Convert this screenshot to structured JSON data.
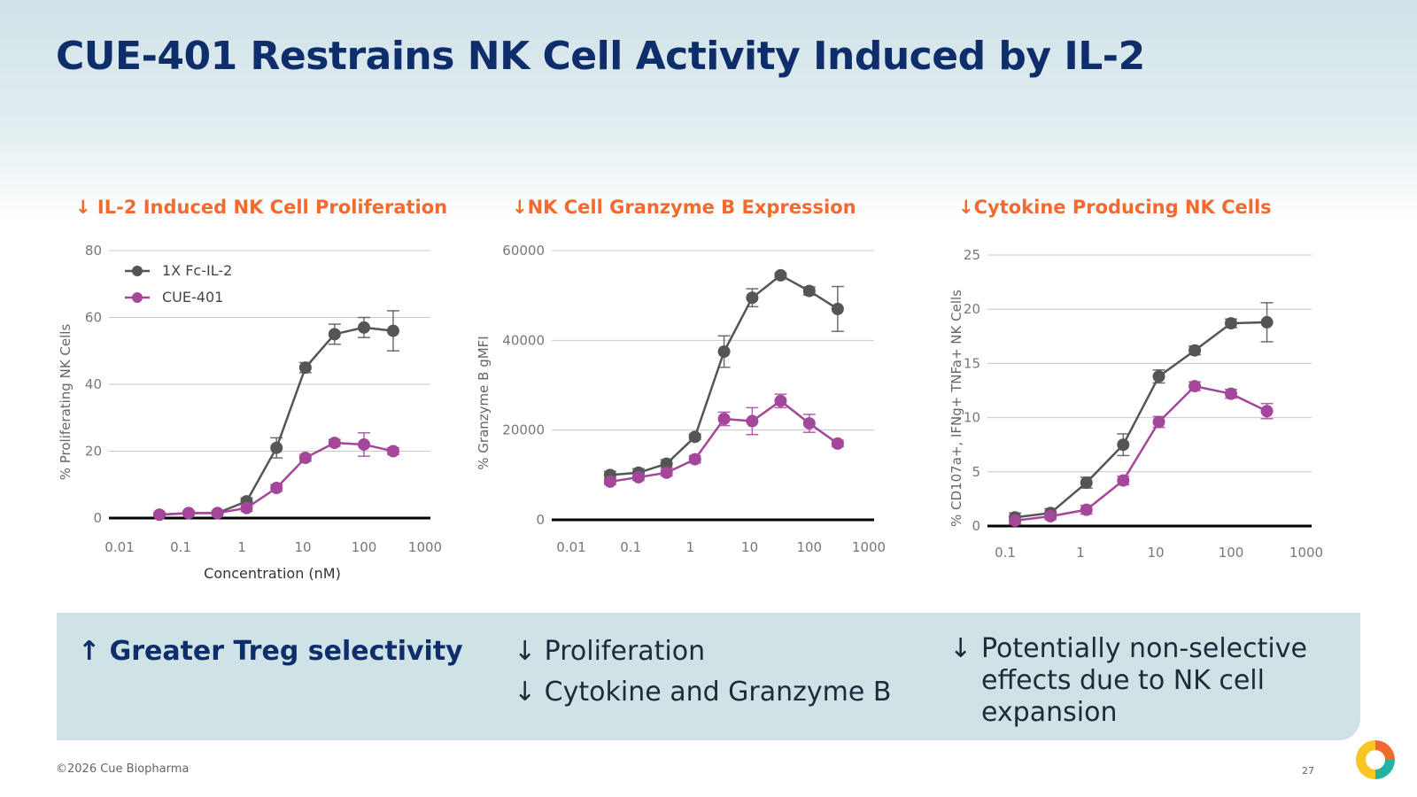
{
  "title": "CUE-401 Restrains NK Cell Activity Induced by IL-2",
  "headings": [
    "↓ IL-2 Induced NK Cell Proliferation",
    "↓NK Cell Granzyme B Expression",
    "↓Cytokine Producing NK Cells"
  ],
  "legend": {
    "s1": "1X Fc-IL-2",
    "s2": "CUE-401"
  },
  "colors": {
    "s1": "#555555",
    "s2": "#a4479b",
    "accent": "#f26a2e",
    "navy": "#0d2d6b"
  },
  "bottom": {
    "highlight": "↑ Greater Treg selectivity",
    "mid": [
      "↓ Proliferation",
      "↓ Cytokine and Granzyme B"
    ],
    "right_arrow": "↓",
    "right_lines": [
      "Potentially non-selective",
      "effects due to NK cell",
      "expansion"
    ]
  },
  "footer": {
    "copyright": "©2026 Cue Biopharma",
    "page": "27"
  },
  "logo_icon": "cue-logo-icon",
  "chart_data": [
    {
      "type": "line",
      "title": "↓ IL-2 Induced NK Cell Proliferation",
      "xlabel": "Concentration (nM)",
      "ylabel": "% Proliferating NK Cells",
      "xscale": "log",
      "xlim": [
        0.01,
        1000
      ],
      "xticks": [
        "0.01",
        "0.1",
        "1",
        "10",
        "100",
        "1000"
      ],
      "ylim": [
        0,
        80
      ],
      "yticks": [
        "0",
        "20",
        "40",
        "60",
        "80"
      ],
      "legend": "top-left",
      "x": [
        0.045,
        0.135,
        0.4,
        1.2,
        3.7,
        11,
        33,
        100,
        300
      ],
      "series": [
        {
          "name": "1X Fc-IL-2",
          "color": "#555555",
          "values": [
            1,
            1.5,
            1.5,
            5,
            21,
            45,
            55,
            57,
            56
          ],
          "err": [
            0.5,
            0.5,
            0.5,
            1,
            3,
            1.5,
            3,
            3,
            6
          ]
        },
        {
          "name": "CUE-401",
          "color": "#a4479b",
          "values": [
            1,
            1.5,
            1.5,
            3,
            9,
            18,
            22.5,
            22,
            20
          ],
          "err": [
            0.5,
            0.5,
            0.5,
            1,
            1,
            1,
            1,
            3.5,
            1
          ]
        }
      ]
    },
    {
      "type": "line",
      "title": "↓NK Cell Granzyme B Expression",
      "xlabel": "",
      "ylabel": "% Granzyme B gMFI",
      "xscale": "log",
      "xlim": [
        0.01,
        1000
      ],
      "xticks": [
        "0.01",
        "0.1",
        "1",
        "10",
        "100",
        "1000"
      ],
      "ylim": [
        0,
        60000
      ],
      "yticks": [
        "0",
        "20000",
        "40000",
        "60000"
      ],
      "x": [
        0.045,
        0.135,
        0.4,
        1.2,
        3.7,
        11,
        33,
        100,
        300
      ],
      "series": [
        {
          "name": "1X Fc-IL-2",
          "color": "#555555",
          "values": [
            10000,
            10500,
            12500,
            18500,
            37500,
            49500,
            54500,
            51000,
            47000
          ],
          "err": [
            800,
            900,
            900,
            600,
            3500,
            2000,
            500,
            900,
            5000
          ]
        },
        {
          "name": "CUE-401",
          "color": "#a4479b",
          "values": [
            8500,
            9500,
            10500,
            13500,
            22500,
            22000,
            26500,
            21500,
            17000
          ],
          "err": [
            600,
            700,
            700,
            800,
            1500,
            3000,
            1500,
            2000,
            700
          ]
        }
      ]
    },
    {
      "type": "line",
      "title": "↓Cytokine Producing NK Cells",
      "xlabel": "",
      "ylabel": "% CD107a+, IFNg+ TNFa+ NK Cells",
      "xscale": "log",
      "xlim": [
        0.1,
        1000
      ],
      "xticks": [
        "0.1",
        "1",
        "10",
        "100",
        "1000"
      ],
      "ylim": [
        0,
        25
      ],
      "yticks": [
        "0",
        "5",
        "10",
        "15",
        "20",
        "25"
      ],
      "x": [
        0.135,
        0.4,
        1.2,
        3.7,
        11,
        33,
        100,
        300
      ],
      "series": [
        {
          "name": "1X Fc-IL-2",
          "color": "#555555",
          "values": [
            0.8,
            1.2,
            4,
            7.5,
            13.8,
            16.2,
            18.7,
            18.8
          ],
          "err": [
            0.4,
            0.4,
            0.5,
            1,
            0.6,
            0.4,
            0.4,
            1.8
          ]
        },
        {
          "name": "CUE-401",
          "color": "#a4479b",
          "values": [
            0.5,
            0.9,
            1.5,
            4.2,
            9.6,
            12.9,
            12.2,
            10.6
          ],
          "err": [
            0.3,
            0.3,
            0.4,
            0.4,
            0.5,
            0.4,
            0.4,
            0.7
          ]
        }
      ]
    }
  ]
}
